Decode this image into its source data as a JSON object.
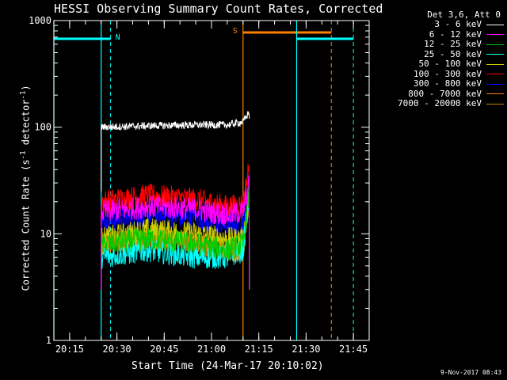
{
  "title": "HESSI Observing Summary Count Rates, Corrected",
  "xlabel": "Start Time (24-Mar-17 20:10:02)",
  "ylabel": {
    "main": "Corrected Count Rate (s",
    "sup1": "-1",
    "mid": " detector",
    "sup2": "-1",
    "end": ")"
  },
  "datestamp": "9-Nov-2017 08:43",
  "legend": {
    "header": "Det 3,6, Att 0",
    "items": [
      {
        "label": "3 - 6 keV",
        "color": "#ffffff"
      },
      {
        "label": "6 - 12 keV",
        "color": "#ff00ff"
      },
      {
        "label": "12 - 25 keV",
        "color": "#00cc00"
      },
      {
        "label": "25 - 50 keV",
        "color": "#00ffff"
      },
      {
        "label": "50 - 100 keV",
        "color": "#cccc00"
      },
      {
        "label": "100 - 300 keV",
        "color": "#ff0000"
      },
      {
        "label": "300 - 800 keV",
        "color": "#0000ff"
      },
      {
        "label": "800 - 7000 keV",
        "color": "#ff8000"
      },
      {
        "label": "7000 - 20000 keV",
        "color": "#cc8800"
      }
    ]
  },
  "chart_data": {
    "type": "line",
    "title": "HESSI Observing Summary Count Rates, Corrected",
    "xlabel": "Start Time (24-Mar-17 20:10:02)",
    "ylabel": "Corrected Count Rate (s-1 detector-1)",
    "yscale": "log",
    "ylim": [
      1,
      1000
    ],
    "xlim": [
      "20:10",
      "21:50"
    ],
    "xticks": [
      "20:15",
      "20:30",
      "20:45",
      "21:00",
      "21:15",
      "21:30",
      "21:45"
    ],
    "yticks": [
      "1",
      "10",
      "100",
      "1000"
    ],
    "series": [
      {
        "name": "3 - 6 keV",
        "color": "#ffffff",
        "x": [
          "20:25",
          "20:40",
          "20:55",
          "21:05",
          "21:10",
          "21:12"
        ],
        "y": [
          100,
          103,
          105,
          105,
          112,
          140
        ]
      },
      {
        "name": "6 - 12 keV",
        "color": "#ff00ff",
        "x": [
          "20:25",
          "20:40",
          "20:55",
          "21:05",
          "21:10",
          "21:12"
        ],
        "y": [
          16,
          18,
          17,
          15,
          16,
          30
        ]
      },
      {
        "name": "12 - 25 keV",
        "color": "#00cc00",
        "x": [
          "20:25",
          "20:40",
          "20:55",
          "21:05",
          "21:10",
          "21:12"
        ],
        "y": [
          8,
          9,
          8,
          7,
          8,
          25
        ]
      },
      {
        "name": "25 - 50 keV",
        "color": "#00ffff",
        "x": [
          "20:25",
          "20:40",
          "20:55",
          "21:05",
          "21:10",
          "21:12"
        ],
        "y": [
          6,
          7,
          6,
          6,
          7,
          22
        ]
      },
      {
        "name": "50 - 100 keV",
        "color": "#cccc00",
        "x": [
          "20:25",
          "20:40",
          "20:55",
          "21:05",
          "21:10",
          "21:12"
        ],
        "y": [
          9,
          11,
          10,
          9,
          9,
          25
        ]
      },
      {
        "name": "100 - 300 keV",
        "color": "#ff0000",
        "x": [
          "20:25",
          "20:40",
          "20:55",
          "21:05",
          "21:10",
          "21:12"
        ],
        "y": [
          20,
          23,
          21,
          18,
          19,
          45
        ]
      },
      {
        "name": "300 - 800 keV",
        "color": "#0000ff",
        "x": [
          "20:25",
          "20:40",
          "20:55",
          "21:05",
          "21:10",
          "21:12"
        ],
        "y": [
          13,
          15,
          14,
          12,
          13,
          35
        ]
      },
      {
        "name": "800 - 7000 keV",
        "color": "#ff8000",
        "x": [
          "20:25",
          "20:40",
          "20:55",
          "21:05",
          "21:10",
          "21:12"
        ],
        "y": [
          8,
          9,
          8,
          7,
          7,
          25
        ]
      },
      {
        "name": "7000 - 20000 keV",
        "color": "#cc8800",
        "x": [
          "20:25",
          "20:40",
          "20:55",
          "21:05",
          "21:10",
          "21:12"
        ],
        "y": [
          8,
          9,
          8,
          7,
          7,
          24
        ]
      }
    ],
    "markers": [
      {
        "label": "N",
        "color": "#00ffff",
        "start": "20:10",
        "end": "20:28",
        "solid_lines": [
          "20:10",
          "20:25"
        ],
        "dashed_line": "20:28"
      },
      {
        "label": "S",
        "color": "#ff8000",
        "start": "21:10",
        "end": "21:38",
        "solid_lines": [
          "21:10"
        ],
        "dashed_line": "21:38"
      },
      {
        "label": "",
        "color": "#00ffff",
        "start": "21:27",
        "end": "21:45",
        "solid_lines": [
          "21:27"
        ],
        "dashed_line": "21:45"
      }
    ],
    "grid": false,
    "legend_position": "right"
  }
}
